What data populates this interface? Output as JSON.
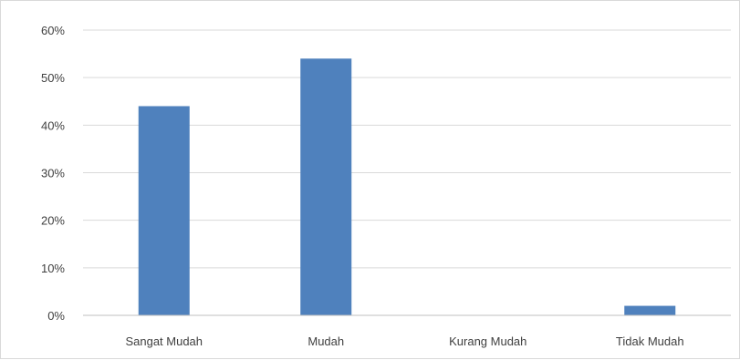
{
  "chart_data": {
    "type": "bar",
    "categories": [
      "Sangat Mudah",
      "Mudah",
      "Kurang Mudah",
      "Tidak Mudah"
    ],
    "values": [
      44,
      54,
      0,
      2
    ],
    "y_ticks": [
      "0%",
      "10%",
      "20%",
      "30%",
      "40%",
      "50%",
      "60%"
    ],
    "ylim": [
      0,
      60
    ],
    "grid": true,
    "legend": "none",
    "bar_color": "#4f81bd",
    "grid_color": "#d9d9d9",
    "axis_color": "#bfbfbf"
  }
}
